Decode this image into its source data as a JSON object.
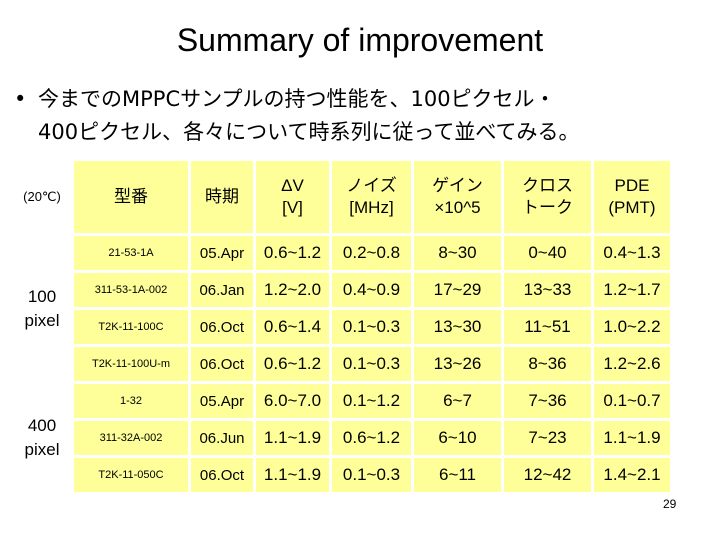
{
  "title": "Summary of improvement",
  "bullet": {
    "marker": "•",
    "line1": "今までのMPPCサンプルの持つ性能を、100ピクセル・",
    "line2": "400ピクセル、各々について時系列に従って並べてみる。"
  },
  "table": {
    "condition": "(20℃)",
    "headers": {
      "model": "型番",
      "period": "時期",
      "dv": [
        "ΔV",
        "[V]"
      ],
      "noise": [
        "ノイズ",
        "[MHz]"
      ],
      "gain": [
        "ゲイン",
        "×10^5"
      ],
      "cross": [
        "クロス",
        "トーク"
      ],
      "pde": [
        "PDE",
        "(PMT)"
      ]
    },
    "groups": [
      {
        "label": [
          "100",
          "pixel"
        ],
        "rows": [
          {
            "model": "21-53-1A",
            "period": "05.Apr",
            "dv": "0.6~1.2",
            "noise": "0.2~0.8",
            "gain": "8~30",
            "cross": "0~40",
            "pde": "0.4~1.3"
          },
          {
            "model": "311-53-1A-002",
            "period": "06.Jan",
            "dv": "1.2~2.0",
            "noise": "0.4~0.9",
            "gain": "17~29",
            "cross": "13~33",
            "pde": "1.2~1.7"
          },
          {
            "model": "T2K-11-100C",
            "period": "06.Oct",
            "dv": "0.6~1.4",
            "noise": "0.1~0.3",
            "gain": "13~30",
            "cross": "11~51",
            "pde": "1.0~2.2"
          },
          {
            "model": "T2K-11-100U-m",
            "period": "06.Oct",
            "dv": "0.6~1.2",
            "noise": "0.1~0.3",
            "gain": "13~26",
            "cross": "8~36",
            "pde": "1.2~2.6"
          }
        ]
      },
      {
        "label": [
          "400",
          "pixel"
        ],
        "rows": [
          {
            "model": "1-32",
            "period": "05.Apr",
            "dv": "6.0~7.0",
            "noise": "0.1~1.2",
            "gain": "6~7",
            "cross": "7~36",
            "pde": "0.1~0.7"
          },
          {
            "model": "311-32A-002",
            "period": "06.Jun",
            "dv": "1.1~1.9",
            "noise": "0.6~1.2",
            "gain": "6~10",
            "cross": "7~23",
            "pde": "1.1~1.9"
          },
          {
            "model": "T2K-11-050C",
            "period": "06.Oct",
            "dv": "1.1~1.9",
            "noise": "0.1~0.3",
            "gain": "6~11",
            "cross": "12~42",
            "pde": "1.4~2.1"
          }
        ]
      }
    ]
  },
  "page_number": "29"
}
